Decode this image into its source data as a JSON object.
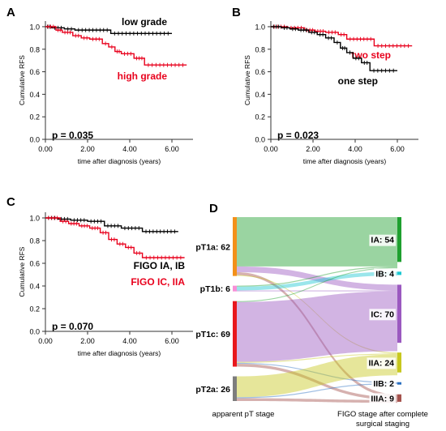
{
  "panels": {
    "A": {
      "letter": "A",
      "p_value": "p = 0.035"
    },
    "B": {
      "letter": "B",
      "p_value": "p = 0.023"
    },
    "C": {
      "letter": "C",
      "p_value": "p = 0.070"
    },
    "D": {
      "letter": "D"
    }
  },
  "colors": {
    "black_series": "#000000",
    "red_series": "#e8001c",
    "axis": "#333333"
  },
  "chart_data": [
    {
      "panel": "A",
      "type": "line",
      "xlabel": "time after diagnosis (years)",
      "ylabel": "Cumulative RFS",
      "xlim": [
        0,
        7
      ],
      "ylim": [
        0,
        1.05
      ],
      "xticks": [
        "0.00",
        "2.00",
        "4.00",
        "6.00"
      ],
      "yticks": [
        "0.0",
        "0.2",
        "0.4",
        "0.6",
        "0.8",
        "1.0"
      ],
      "series": [
        {
          "name": "low grade",
          "color": "#000000",
          "label_color": "#000000",
          "steps": [
            [
              0,
              1.0
            ],
            [
              0.3,
              0.99
            ],
            [
              0.9,
              0.98
            ],
            [
              1.4,
              0.97
            ],
            [
              3.1,
              0.94
            ],
            [
              6.0,
              0.94
            ]
          ]
        },
        {
          "name": "high grade",
          "color": "#e8001c",
          "label_color": "#e8001c",
          "steps": [
            [
              0,
              1.0
            ],
            [
              0.5,
              0.97
            ],
            [
              0.8,
              0.95
            ],
            [
              1.3,
              0.92
            ],
            [
              1.7,
              0.9
            ],
            [
              2.1,
              0.89
            ],
            [
              2.7,
              0.85
            ],
            [
              3.0,
              0.82
            ],
            [
              3.3,
              0.78
            ],
            [
              3.6,
              0.76
            ],
            [
              4.2,
              0.72
            ],
            [
              4.7,
              0.66
            ],
            [
              6.7,
              0.66
            ]
          ]
        }
      ]
    },
    {
      "panel": "B",
      "type": "line",
      "xlabel": "time after diagnosis (years)",
      "ylabel": "Cumulative RFS",
      "xlim": [
        0,
        7
      ],
      "ylim": [
        0,
        1.05
      ],
      "xticks": [
        "0.00",
        "2.00",
        "4.00",
        "6.00"
      ],
      "yticks": [
        "0.0",
        "0.2",
        "0.4",
        "0.6",
        "0.8",
        "1.0"
      ],
      "series": [
        {
          "name": "two step",
          "color": "#e8001c",
          "label_color": "#e8001c",
          "steps": [
            [
              0,
              1.0
            ],
            [
              0.8,
              0.99
            ],
            [
              1.6,
              0.97
            ],
            [
              2.1,
              0.96
            ],
            [
              2.6,
              0.95
            ],
            [
              3.2,
              0.93
            ],
            [
              3.6,
              0.89
            ],
            [
              4.9,
              0.83
            ],
            [
              6.7,
              0.83
            ]
          ]
        },
        {
          "name": "one step",
          "color": "#000000",
          "label_color": "#000000",
          "steps": [
            [
              0,
              1.0
            ],
            [
              0.5,
              0.99
            ],
            [
              0.9,
              0.98
            ],
            [
              1.3,
              0.97
            ],
            [
              1.8,
              0.95
            ],
            [
              2.2,
              0.93
            ],
            [
              2.6,
              0.9
            ],
            [
              3.0,
              0.86
            ],
            [
              3.3,
              0.81
            ],
            [
              3.6,
              0.77
            ],
            [
              3.9,
              0.72
            ],
            [
              4.3,
              0.68
            ],
            [
              4.7,
              0.61
            ],
            [
              6.0,
              0.61
            ]
          ]
        }
      ]
    },
    {
      "panel": "C",
      "type": "line",
      "xlabel": "time after diagnosis (years)",
      "ylabel": "Cumulative RFS",
      "xlim": [
        0,
        7
      ],
      "ylim": [
        0,
        1.05
      ],
      "xticks": [
        "0.00",
        "2.00",
        "4.00",
        "6.00"
      ],
      "yticks": [
        "0.0",
        "0.2",
        "0.4",
        "0.6",
        "0.8",
        "1.0"
      ],
      "series": [
        {
          "name": "FIGO IA, IB",
          "color": "#000000",
          "label_color": "#000000",
          "steps": [
            [
              0,
              1.0
            ],
            [
              0.6,
              0.99
            ],
            [
              1.2,
              0.98
            ],
            [
              2.0,
              0.97
            ],
            [
              2.8,
              0.93
            ],
            [
              3.6,
              0.91
            ],
            [
              4.6,
              0.88
            ],
            [
              6.3,
              0.88
            ]
          ]
        },
        {
          "name": "FIGO IC, IIA",
          "color": "#e8001c",
          "label_color": "#e8001c",
          "steps": [
            [
              0,
              1.0
            ],
            [
              0.7,
              0.97
            ],
            [
              1.1,
              0.95
            ],
            [
              1.6,
              0.93
            ],
            [
              2.1,
              0.91
            ],
            [
              2.6,
              0.87
            ],
            [
              3.0,
              0.81
            ],
            [
              3.4,
              0.77
            ],
            [
              3.8,
              0.74
            ],
            [
              4.2,
              0.69
            ],
            [
              4.6,
              0.65
            ],
            [
              6.6,
              0.65
            ]
          ]
        }
      ]
    },
    {
      "panel": "D",
      "type": "sankey",
      "left_title": "apparent pT stage",
      "right_title": "FIGO stage after complete surgical staging",
      "right_title_lines": [
        "FIGO stage after complete",
        "surgical staging"
      ],
      "left_nodes": [
        {
          "label": "pT1a: 62",
          "value": 62,
          "color": "#f39019"
        },
        {
          "label": "pT1b: 6",
          "value": 6,
          "color": "#f78fd7"
        },
        {
          "label": "pT1c: 69",
          "value": 69,
          "color": "#e8171c"
        },
        {
          "label": "pT2a: 26",
          "value": 26,
          "color": "#7d7d7d"
        }
      ],
      "right_nodes": [
        {
          "label": "IA: 54",
          "value": 54,
          "color": "#1ea02f"
        },
        {
          "label": "IB: 4",
          "value": 4,
          "color": "#1ec8d2"
        },
        {
          "label": "IC: 70",
          "value": 70,
          "color": "#9b59c0"
        },
        {
          "label": "IIA: 24",
          "value": 24,
          "color": "#c7c71e"
        },
        {
          "label": "IIB: 2",
          "value": 2,
          "color": "#2a6fc0"
        },
        {
          "label": "IIIA: 9",
          "value": 9,
          "color": "#a5524d"
        }
      ],
      "links": [
        {
          "source": "pT1a: 62",
          "target": "IA: 54",
          "value": 52
        },
        {
          "source": "pT1a: 62",
          "target": "IC: 70",
          "value": 6
        },
        {
          "source": "pT1a: 62",
          "target": "IIIA: 9",
          "value": 3
        },
        {
          "source": "pT1a: 62",
          "target": "IIA: 24",
          "value": 1
        },
        {
          "source": "pT1b: 6",
          "target": "IA: 54",
          "value": 1
        },
        {
          "source": "pT1b: 6",
          "target": "IB: 4",
          "value": 4
        },
        {
          "source": "pT1b: 6",
          "target": "IC: 70",
          "value": 1
        },
        {
          "source": "pT1c: 69",
          "target": "IA: 54",
          "value": 1
        },
        {
          "source": "pT1c: 69",
          "target": "IC: 70",
          "value": 63
        },
        {
          "source": "pT1c: 69",
          "target": "IIA: 24",
          "value": 1
        },
        {
          "source": "pT1c: 69",
          "target": "IIB: 2",
          "value": 1
        },
        {
          "source": "pT1c: 69",
          "target": "IIIA: 9",
          "value": 3
        },
        {
          "source": "pT2a: 26",
          "target": "IIA: 24",
          "value": 22
        },
        {
          "source": "pT2a: 26",
          "target": "IIB: 2",
          "value": 1
        },
        {
          "source": "pT2a: 26",
          "target": "IIIA: 9",
          "value": 3
        }
      ]
    }
  ]
}
